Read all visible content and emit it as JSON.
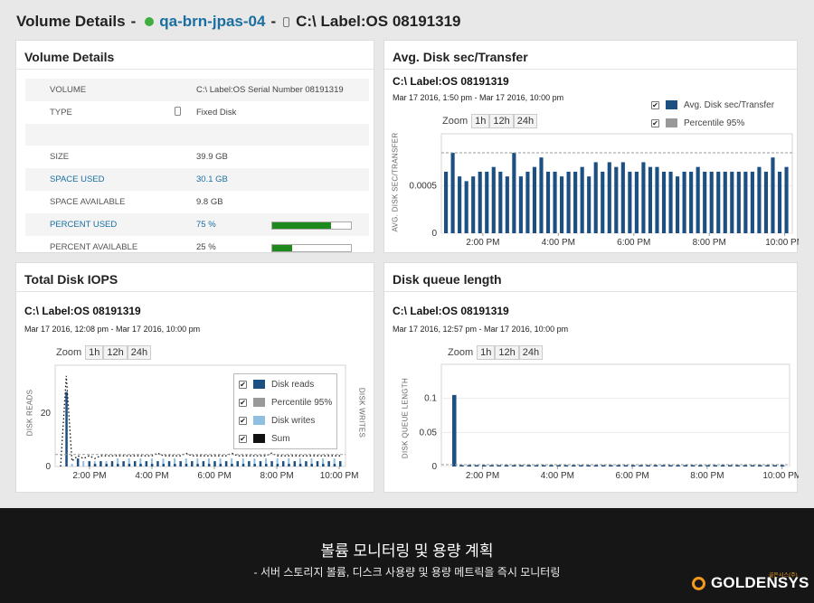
{
  "header": {
    "title": "Volume Details",
    "separator": "-",
    "node_name": "qa-brn-jpas-04",
    "status_color": "#3fae3f",
    "volume": "C:\\ Label:OS 08191319"
  },
  "volume_details": {
    "title": "Volume Details",
    "rows": [
      {
        "label": "VOLUME",
        "value": "C:\\ Label:OS Serial Number 08191319"
      },
      {
        "label": "TYPE",
        "value": "Fixed Disk",
        "icon": "disk-icon"
      },
      {
        "label": "",
        "value": ""
      },
      {
        "label": "SIZE",
        "value": "39.9 GB"
      },
      {
        "label": "SPACE USED",
        "value": "30.1 GB",
        "link": true
      },
      {
        "label": "SPACE AVAILABLE",
        "value": "9.8 GB"
      },
      {
        "label": "PERCENT USED",
        "value": "75 %",
        "link": true,
        "bar": 0.75
      },
      {
        "label": "PERCENT AVAILABLE",
        "value": "25 %",
        "bar": 0.25
      }
    ]
  },
  "zoom": {
    "label": "Zoom",
    "options": [
      "1h",
      "12h",
      "24h"
    ]
  },
  "avg_disk": {
    "title": "Avg. Disk sec/Transfer",
    "subtitle": "C:\\ Label:OS 08191319",
    "range": "Mar 17 2016, 1:50 pm - Mar 17 2016, 10:00 pm",
    "ylabel": "AVG. DISK SEC/TRANSFER",
    "legend": [
      "Avg. Disk sec/Transfer",
      "Percentile 95%"
    ]
  },
  "total_iops": {
    "title": "Total Disk IOPS",
    "subtitle": "C:\\ Label:OS 08191319",
    "range": "Mar 17 2016, 12:08 pm - Mar 17 2016, 10:00 pm",
    "ylabel": "DISK READS",
    "ylabel2": "DISK WRITES",
    "legend": [
      "Disk reads",
      "Percentile 95%",
      "Disk writes",
      "Sum"
    ]
  },
  "queue": {
    "title": "Disk queue length",
    "subtitle": "C:\\ Label:OS 08191319",
    "range": "Mar 17 2016, 12:57 pm - Mar 17 2016, 10:00 pm",
    "ylabel": "DISK QUEUE LENGTH"
  },
  "footer": {
    "title": "볼륨 모니터링 및 용량 계획",
    "subtitle": "- 서버 스토리지 볼륨, 디스크 사용량 및 용량 메트릭을 즉시 모니터링",
    "brand": "GOLDENSYS",
    "brand_tag": "골든시스(주)"
  },
  "colors": {
    "bar": "#1c4f82",
    "percentile": "#999999",
    "writes": "#8fbfe0",
    "sum": "#111111",
    "accent": "#1a6fa0",
    "progress": "#1e8a1e"
  },
  "chart_data": [
    {
      "type": "bar",
      "title": "Avg. Disk sec/Transfer",
      "ylabel": "AVG. DISK SEC/TRANSFER",
      "xticks": [
        "2:00 PM",
        "4:00 PM",
        "6:00 PM",
        "8:00 PM",
        "10:00 PM"
      ],
      "yticks": [
        "0",
        "0.0005"
      ],
      "ylim": [
        0,
        0.00105
      ],
      "percentile_95": 0.00085,
      "series": [
        {
          "name": "Avg. Disk sec/Transfer",
          "values": [
            0.00065,
            0.00085,
            0.0006,
            0.00055,
            0.0006,
            0.00065,
            0.00065,
            0.0007,
            0.00065,
            0.0006,
            0.00085,
            0.0006,
            0.00065,
            0.0007,
            0.0008,
            0.00065,
            0.00065,
            0.0006,
            0.00065,
            0.00065,
            0.0007,
            0.0006,
            0.00075,
            0.00065,
            0.00075,
            0.0007,
            0.00075,
            0.00065,
            0.00065,
            0.00075,
            0.0007,
            0.0007,
            0.00065,
            0.00065,
            0.0006,
            0.00065,
            0.00065,
            0.0007,
            0.00065,
            0.00065,
            0.00065,
            0.00065,
            0.00065,
            0.00065,
            0.00065,
            0.00065,
            0.0007,
            0.00065,
            0.0008,
            0.00065,
            0.0007
          ]
        }
      ]
    },
    {
      "type": "line",
      "title": "Total Disk IOPS",
      "ylabel": "DISK READS",
      "xticks": [
        "2:00 PM",
        "4:00 PM",
        "6:00 PM",
        "8:00 PM",
        "10:00 PM"
      ],
      "yticks": [
        "0",
        "20"
      ],
      "ylim": [
        0,
        38
      ],
      "series": [
        {
          "name": "Disk reads",
          "values": [
            0,
            28,
            0,
            3,
            0,
            2,
            1,
            2,
            1,
            2,
            1,
            2,
            1,
            2,
            1,
            2,
            1,
            2,
            1,
            2,
            1,
            2,
            1,
            2,
            1,
            2,
            1,
            2,
            1,
            2,
            1,
            2,
            1,
            2,
            1,
            2,
            1,
            2,
            1,
            2,
            1,
            2,
            1,
            2,
            1,
            2,
            1,
            2,
            1,
            2
          ]
        },
        {
          "name": "Disk writes",
          "values": [
            0,
            3,
            1,
            2,
            2,
            2,
            2,
            3,
            2,
            3,
            3,
            3,
            3,
            3,
            3,
            3,
            3,
            3,
            3,
            3,
            3,
            3,
            3,
            3,
            3,
            3,
            3,
            3,
            3,
            3,
            3,
            3,
            3,
            3,
            3,
            3,
            3,
            3,
            3,
            3,
            3,
            3,
            3,
            3,
            3,
            3,
            3,
            3,
            3,
            3
          ]
        },
        {
          "name": "Sum",
          "values": [
            0,
            34,
            2,
            4,
            3,
            4,
            3,
            4,
            4,
            4,
            4,
            4,
            4,
            4,
            4,
            4,
            4,
            5,
            4,
            4,
            4,
            4,
            5,
            4,
            4,
            4,
            4,
            4,
            4,
            4,
            5,
            4,
            4,
            4,
            4,
            4,
            4,
            5,
            4,
            4,
            4,
            4,
            4,
            4,
            4,
            4,
            4,
            4,
            4,
            4
          ]
        }
      ]
    },
    {
      "type": "bar",
      "title": "Disk queue length",
      "ylabel": "DISK QUEUE LENGTH",
      "xticks": [
        "2:00 PM",
        "4:00 PM",
        "6:00 PM",
        "8:00 PM",
        "10:00 PM"
      ],
      "yticks": [
        "0",
        "0.05",
        "0.1"
      ],
      "ylim": [
        0,
        0.15
      ],
      "series": [
        {
          "name": "Disk queue length",
          "values": [
            0.105,
            0.002,
            0.002,
            0.002,
            0.002,
            0.002,
            0.002,
            0.002,
            0.002,
            0.002,
            0.002,
            0.002,
            0.002,
            0.002,
            0.002,
            0.002,
            0.002,
            0.002,
            0.002,
            0.002,
            0.002,
            0.002,
            0.002,
            0.002,
            0.002,
            0.002,
            0.002,
            0.002,
            0.002,
            0.002,
            0.002,
            0.002,
            0.002,
            0.002,
            0.002,
            0.002,
            0.002,
            0.002,
            0.002,
            0.002,
            0.002,
            0.002,
            0.002,
            0.002,
            0.002
          ]
        }
      ]
    }
  ]
}
